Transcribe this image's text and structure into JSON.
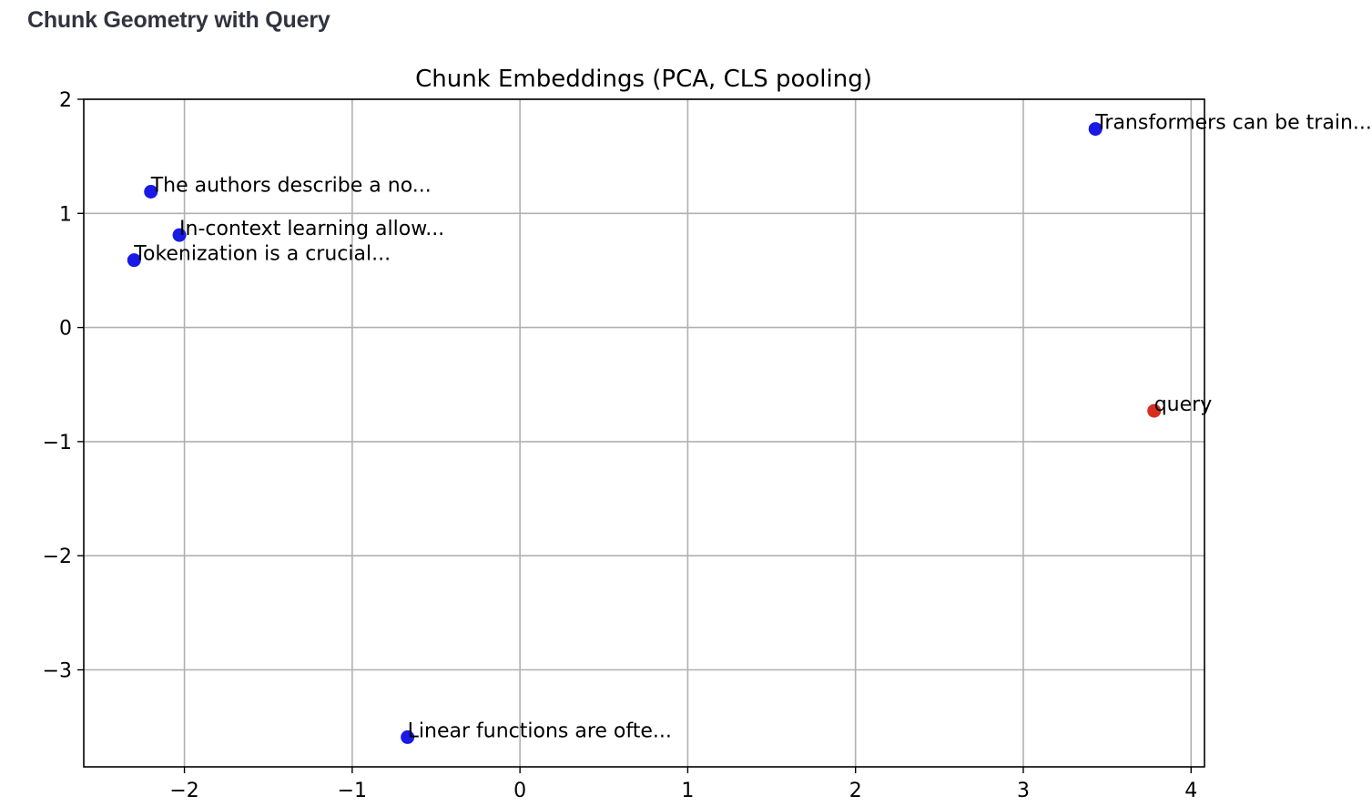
{
  "header": {
    "title": "Chunk Geometry with Query"
  },
  "chart_data": {
    "type": "scatter",
    "title": "Chunk Embeddings (PCA, CLS pooling)",
    "xlabel": "",
    "ylabel": "",
    "xlim": [
      -2.6,
      4.08
    ],
    "ylim": [
      -3.85,
      2.0
    ],
    "xticks": [
      -2,
      -1,
      0,
      1,
      2,
      3,
      4
    ],
    "yticks": [
      -3,
      -2,
      -1,
      0,
      1,
      2
    ],
    "xtick_labels": [
      "−2",
      "−1",
      "0",
      "1",
      "2",
      "3",
      "4"
    ],
    "ytick_labels": [
      "−3",
      "−2",
      "−1",
      "0",
      "1",
      "2"
    ],
    "grid": true,
    "colors": {
      "chunk": "#1a1ae6",
      "query": "#d62d20",
      "grid": "#b0b0b0",
      "axis": "#000000"
    },
    "points": [
      {
        "label": "Transformers can be train...",
        "x": 3.43,
        "y": 1.74,
        "kind": "chunk"
      },
      {
        "label": "The authors describe a no...",
        "x": -2.2,
        "y": 1.19,
        "kind": "chunk"
      },
      {
        "label": "In-context learning allow...",
        "x": -2.03,
        "y": 0.81,
        "kind": "chunk"
      },
      {
        "label": "Tokenization is a crucial...",
        "x": -2.3,
        "y": 0.59,
        "kind": "chunk"
      },
      {
        "label": "query",
        "x": 3.78,
        "y": -0.73,
        "kind": "query"
      },
      {
        "label": "Linear functions are ofte...",
        "x": -0.67,
        "y": -3.59,
        "kind": "chunk"
      }
    ]
  }
}
